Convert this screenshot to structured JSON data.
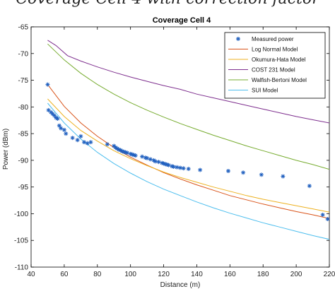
{
  "page_title": "Coverage Cell 4 with correction factor",
  "chart_data": {
    "type": "line",
    "title": "Coverage Cell 4",
    "xlabel": "Distance (m)",
    "ylabel": "Power (dBm)",
    "xlim": [
      40,
      220
    ],
    "ylim": [
      -110,
      -65
    ],
    "xticks": [
      40,
      60,
      80,
      100,
      120,
      140,
      160,
      180,
      200,
      220
    ],
    "xtick_labels": [
      "40",
      "60",
      "80",
      "100",
      "120",
      "140",
      "160",
      "180",
      "200",
      "220"
    ],
    "yticks": [
      -110,
      -105,
      -100,
      -95,
      -90,
      -85,
      -80,
      -75,
      -70,
      -65
    ],
    "grid": false,
    "legend_position": "top-right",
    "series": [
      {
        "name": "Measured power",
        "style": "markers",
        "marker": "asterisk",
        "color": "#1f5fbf",
        "x": [
          50,
          50.5,
          52,
          53,
          54,
          55,
          56,
          57,
          58,
          60,
          61,
          65,
          68,
          70,
          72,
          74,
          76,
          86,
          90,
          91,
          92,
          93,
          94,
          95,
          96,
          97,
          98,
          100,
          101,
          102,
          103,
          107,
          109,
          110,
          112,
          114,
          115,
          117,
          119,
          120,
          121,
          122,
          123,
          125,
          126,
          128,
          130,
          132,
          135,
          142,
          159,
          168,
          179,
          192,
          208,
          216,
          219
        ],
        "y": [
          -75.8,
          -80.6,
          -81.0,
          -81.3,
          -81.6,
          -82.0,
          -82.2,
          -83.5,
          -84.0,
          -84.3,
          -85.0,
          -85.8,
          -86.2,
          -85.5,
          -86.6,
          -86.8,
          -86.6,
          -87.0,
          -87.3,
          -87.6,
          -87.8,
          -88.0,
          -88.1,
          -88.3,
          -88.4,
          -88.5,
          -88.6,
          -88.8,
          -88.9,
          -89.0,
          -89.1,
          -89.3,
          -89.5,
          -89.6,
          -89.8,
          -90.0,
          -90.2,
          -90.3,
          -90.5,
          -90.6,
          -90.7,
          -90.8,
          -90.9,
          -91.1,
          -91.2,
          -91.3,
          -91.4,
          -91.5,
          -91.6,
          -91.8,
          -92.0,
          -92.3,
          -92.7,
          -93.0,
          -94.8,
          -100.2,
          -101.0
        ]
      },
      {
        "name": "Log Normal Model",
        "style": "line",
        "color": "#d95319",
        "x": [
          50,
          60,
          70,
          80,
          90,
          100,
          110,
          120,
          130,
          140,
          150,
          160,
          170,
          180,
          190,
          200,
          210,
          220
        ],
        "y": [
          -75.8,
          -79.9,
          -83.0,
          -85.5,
          -87.6,
          -89.4,
          -90.9,
          -92.3,
          -93.5,
          -94.6,
          -95.6,
          -96.6,
          -97.4,
          -98.2,
          -98.9,
          -99.6,
          -100.2,
          -100.9
        ]
      },
      {
        "name": "Okumura-Hata Model",
        "style": "line",
        "color": "#edb120",
        "x": [
          50,
          60,
          70,
          80,
          90,
          100,
          110,
          120,
          130,
          140,
          150,
          160,
          170,
          180,
          190,
          200,
          210,
          220
        ],
        "y": [
          -78.5,
          -81.8,
          -84.4,
          -86.4,
          -88.2,
          -89.7,
          -91.0,
          -92.2,
          -93.2,
          -94.1,
          -95.0,
          -95.8,
          -96.6,
          -97.3,
          -97.9,
          -98.5,
          -99.1,
          -99.7
        ]
      },
      {
        "name": "COST 231 Model",
        "style": "line",
        "color": "#7e2f8e",
        "x": [
          50,
          55,
          62,
          70,
          80,
          90,
          100,
          110,
          120,
          130,
          140,
          150,
          160,
          170,
          180,
          190,
          200,
          210,
          220
        ],
        "y": [
          -67.5,
          -68.5,
          -70.4,
          -71.4,
          -72.5,
          -73.5,
          -74.4,
          -75.2,
          -76.0,
          -76.7,
          -77.6,
          -78.3,
          -79.0,
          -79.7,
          -80.4,
          -81.1,
          -81.8,
          -82.4,
          -83.0
        ]
      },
      {
        "name": "Walfish-Bertoni Model",
        "style": "line",
        "color": "#77ac30",
        "x": [
          50,
          60,
          70,
          80,
          90,
          100,
          110,
          120,
          130,
          140,
          150,
          160,
          170,
          180,
          190,
          200,
          210,
          220
        ],
        "y": [
          -68.2,
          -71.2,
          -73.7,
          -75.8,
          -77.6,
          -79.2,
          -80.6,
          -81.9,
          -83.1,
          -84.2,
          -85.3,
          -86.3,
          -87.3,
          -88.2,
          -89.1,
          -90.0,
          -90.8,
          -91.7
        ]
      },
      {
        "name": "SUI Model",
        "style": "line",
        "color": "#4dbeee",
        "x": [
          50,
          60,
          70,
          80,
          90,
          100,
          110,
          120,
          130,
          140,
          150,
          160,
          170,
          180,
          190,
          200,
          210,
          220
        ],
        "y": [
          -79.3,
          -83.0,
          -86.0,
          -88.5,
          -90.6,
          -92.4,
          -94.0,
          -95.4,
          -96.6,
          -97.8,
          -98.9,
          -99.9,
          -100.8,
          -101.7,
          -102.5,
          -103.3,
          -104.1,
          -104.8
        ]
      }
    ]
  }
}
